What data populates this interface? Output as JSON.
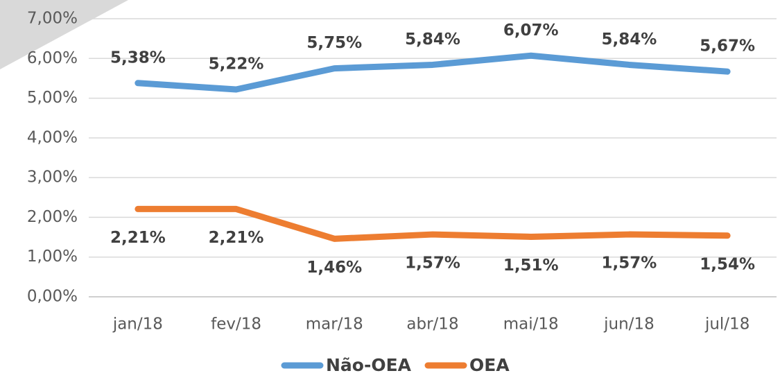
{
  "chart_data": {
    "type": "line",
    "categories": [
      "jan/18",
      "fev/18",
      "mar/18",
      "abr/18",
      "mai/18",
      "jun/18",
      "jul/18"
    ],
    "series": [
      {
        "name": "Não-OEA",
        "color": "#5b9bd5",
        "values": [
          5.38,
          5.22,
          5.75,
          5.84,
          6.07,
          5.84,
          5.67
        ],
        "value_labels": [
          "5,38%",
          "5,22%",
          "5,75%",
          "5,84%",
          "6,07%",
          "5,84%",
          "5,67%"
        ]
      },
      {
        "name": "OEA",
        "color": "#ed7d31",
        "values": [
          2.21,
          2.21,
          1.46,
          1.57,
          1.51,
          1.57,
          1.54
        ],
        "value_labels": [
          "2,21%",
          "2,21%",
          "1,46%",
          "1,57%",
          "1,51%",
          "1,57%",
          "1,54%"
        ]
      }
    ],
    "ylim": [
      0,
      7
    ],
    "yticks": [
      {
        "value": 0,
        "label": "0,00%"
      },
      {
        "value": 1,
        "label": "1,00%"
      },
      {
        "value": 2,
        "label": "2,00%"
      },
      {
        "value": 3,
        "label": "3,00%"
      },
      {
        "value": 4,
        "label": "4,00%"
      },
      {
        "value": 5,
        "label": "5,00%"
      },
      {
        "value": 6,
        "label": "6,00%"
      },
      {
        "value": 7,
        "label": "7,00%"
      }
    ],
    "grid": true,
    "legend": "bottom"
  }
}
